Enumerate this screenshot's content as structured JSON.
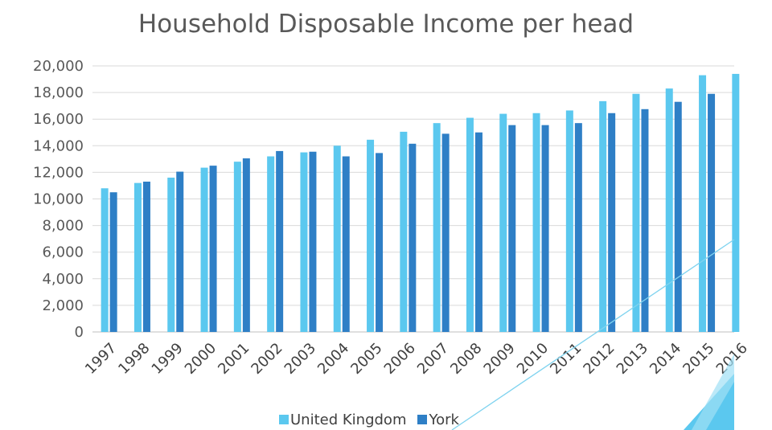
{
  "chart_data": {
    "type": "bar",
    "title": "Household Disposable Income per head",
    "xlabel": "",
    "ylabel": "",
    "ylim": [
      0,
      20000
    ],
    "yticks": [
      "0",
      "2,000",
      "4,000",
      "6,000",
      "8,000",
      "10,000",
      "12,000",
      "14,000",
      "16,000",
      "18,000",
      "20,000"
    ],
    "categories": [
      "1997",
      "1998",
      "1999",
      "2000",
      "2001",
      "2002",
      "2003",
      "2004",
      "2005",
      "2006",
      "2007",
      "2008",
      "2009",
      "2010",
      "2011",
      "2012",
      "2013",
      "2014",
      "2015",
      "2016"
    ],
    "series": [
      {
        "name": "United Kingdom",
        "color": "#5bc8ef",
        "values": [
          10800,
          11200,
          11600,
          12350,
          12800,
          13200,
          13500,
          14000,
          14450,
          15050,
          15700,
          16100,
          16400,
          16450,
          16650,
          17350,
          17900,
          18300,
          19300,
          19400
        ]
      },
      {
        "name": "York",
        "color": "#2e7fc6",
        "values": [
          10500,
          11300,
          12050,
          12500,
          13050,
          13600,
          13550,
          13200,
          13450,
          14150,
          14900,
          15000,
          15550,
          15550,
          15700,
          16450,
          16750,
          17300,
          17900,
          null
        ]
      }
    ],
    "grid": true,
    "legend_position": "bottom"
  }
}
